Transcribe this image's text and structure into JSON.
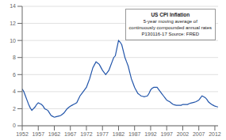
{
  "chart_data": {
    "type": "line",
    "title": "US CPI Inflation",
    "subtitle": [
      "5-year moving average of",
      "continuously compounded annual rates",
      "P130116-17 Source: FRED"
    ],
    "color": "#2255aa",
    "grid": true,
    "xlim": [
      1952,
      2013
    ],
    "xticks": [
      1952,
      1957,
      1962,
      1967,
      1972,
      1977,
      1982,
      1987,
      1992,
      1997,
      2002,
      2007,
      2012
    ],
    "ylim": [
      0,
      14
    ],
    "yticks": [
      0,
      2,
      4,
      6,
      8,
      10,
      12,
      14
    ],
    "x": [
      1952,
      1952.5,
      1953,
      1953.5,
      1954,
      1954.5,
      1955,
      1955.5,
      1956,
      1956.5,
      1957,
      1957.5,
      1958,
      1958.5,
      1959,
      1959.5,
      1960,
      1960.5,
      1961,
      1961.5,
      1962,
      1962.5,
      1963,
      1963.5,
      1964,
      1964.5,
      1965,
      1965.5,
      1966,
      1966.5,
      1967,
      1967.5,
      1968,
      1968.5,
      1969,
      1969.5,
      1970,
      1970.5,
      1971,
      1971.5,
      1972,
      1972.5,
      1973,
      1973.5,
      1974,
      1974.5,
      1975,
      1975.5,
      1976,
      1976.5,
      1977,
      1977.5,
      1978,
      1978.5,
      1979,
      1979.5,
      1980,
      1980.5,
      1981,
      1981.5,
      1982,
      1982.5,
      1983,
      1983.5,
      1984,
      1984.5,
      1985,
      1985.5,
      1986,
      1986.5,
      1987,
      1987.5,
      1988,
      1988.5,
      1989,
      1989.5,
      1990,
      1990.5,
      1991,
      1991.5,
      1992,
      1992.5,
      1993,
      1993.5,
      1994,
      1994.5,
      1995,
      1995.5,
      1996,
      1996.5,
      1997,
      1997.5,
      1998,
      1998.5,
      1999,
      1999.5,
      2000,
      2000.5,
      2001,
      2001.5,
      2002,
      2002.5,
      2003,
      2003.5,
      2004,
      2004.5,
      2005,
      2005.5,
      2006,
      2006.5,
      2007,
      2007.5,
      2008,
      2008.5,
      2009,
      2009.5,
      2010,
      2010.5,
      2011,
      2011.5,
      2012,
      2012.5,
      2013
    ],
    "values": [
      4.3,
      4.0,
      3.5,
      3.0,
      2.5,
      2.1,
      1.8,
      2.0,
      2.2,
      2.5,
      2.7,
      2.6,
      2.5,
      2.3,
      2.0,
      1.9,
      1.8,
      1.5,
      1.2,
      1.1,
      1.0,
      1.05,
      1.1,
      1.15,
      1.2,
      1.35,
      1.5,
      1.75,
      2.0,
      2.15,
      2.3,
      2.4,
      2.5,
      2.6,
      2.7,
      3.1,
      3.5,
      3.75,
      4.0,
      4.25,
      4.5,
      5.0,
      5.5,
      6.15,
      6.8,
      7.15,
      7.5,
      7.35,
      7.2,
      6.85,
      6.5,
      6.25,
      6.0,
      6.25,
      6.5,
      7.0,
      7.5,
      8.0,
      8.2,
      9.1,
      10.0,
      9.8,
      9.5,
      8.75,
      8.0,
      7.5,
      7.0,
      6.25,
      5.5,
      5.0,
      4.5,
      4.15,
      3.8,
      3.65,
      3.5,
      3.45,
      3.4,
      3.45,
      3.5,
      3.8,
      4.2,
      4.4,
      4.5,
      4.5,
      4.5,
      4.25,
      4.0,
      3.75,
      3.5,
      3.25,
      3.0,
      2.9,
      2.8,
      2.65,
      2.5,
      2.45,
      2.4,
      2.4,
      2.4,
      2.4,
      2.5,
      2.5,
      2.5,
      2.5,
      2.6,
      2.65,
      2.7,
      2.75,
      2.8,
      2.9,
      3.0,
      3.25,
      3.5,
      3.4,
      3.3,
      3.1,
      2.8,
      2.65,
      2.5,
      2.4,
      2.3,
      2.25,
      2.2
    ]
  }
}
